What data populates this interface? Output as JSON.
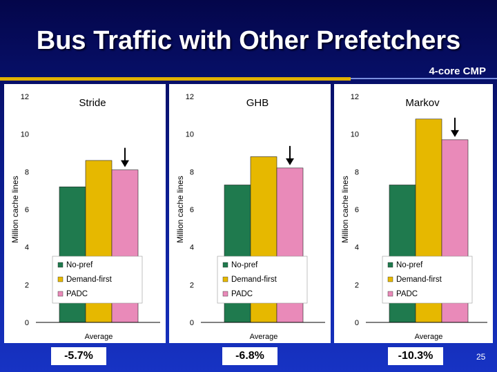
{
  "slide": {
    "title": "Bus Traffic with Other Prefetchers",
    "subtitle": "4-core CMP",
    "page_number": "25"
  },
  "colors": {
    "No-pref": "#1f7a4e",
    "Demand-first": "#e6b800",
    "PADC": "#e98ab9"
  },
  "chart_data": [
    {
      "type": "bar",
      "title": "Stride",
      "categories": [
        "Average"
      ],
      "series": [
        {
          "name": "No-pref",
          "values": [
            7.2
          ]
        },
        {
          "name": "Demand-first",
          "values": [
            8.6
          ]
        },
        {
          "name": "PADC",
          "values": [
            8.1
          ]
        }
      ],
      "ylabel": "Million cache lines",
      "ylim": [
        0,
        12
      ],
      "yticks": [
        "0",
        "2",
        "4",
        "6",
        "8",
        "10",
        "12"
      ],
      "legend": "bottom-left",
      "arrow_on": "PADC",
      "reduction": "-5.7%"
    },
    {
      "type": "bar",
      "title": "GHB",
      "categories": [
        "Average"
      ],
      "series": [
        {
          "name": "No-pref",
          "values": [
            7.3
          ]
        },
        {
          "name": "Demand-first",
          "values": [
            8.8
          ]
        },
        {
          "name": "PADC",
          "values": [
            8.2
          ]
        }
      ],
      "ylabel": "Million cache lines",
      "ylim": [
        0,
        12
      ],
      "yticks": [
        "0",
        "2",
        "4",
        "6",
        "8",
        "10",
        "12"
      ],
      "legend": "bottom-left",
      "arrow_on": "PADC",
      "reduction": "-6.8%"
    },
    {
      "type": "bar",
      "title": "Markov",
      "categories": [
        "Average"
      ],
      "series": [
        {
          "name": "No-pref",
          "values": [
            7.3
          ]
        },
        {
          "name": "Demand-first",
          "values": [
            10.8
          ]
        },
        {
          "name": "PADC",
          "values": [
            9.7
          ]
        }
      ],
      "ylabel": "Million cache lines",
      "ylim": [
        0,
        12
      ],
      "yticks": [
        "0",
        "2",
        "4",
        "6",
        "8",
        "10",
        "12"
      ],
      "legend": "bottom-left",
      "arrow_on": "PADC",
      "reduction": "-10.3%"
    }
  ]
}
